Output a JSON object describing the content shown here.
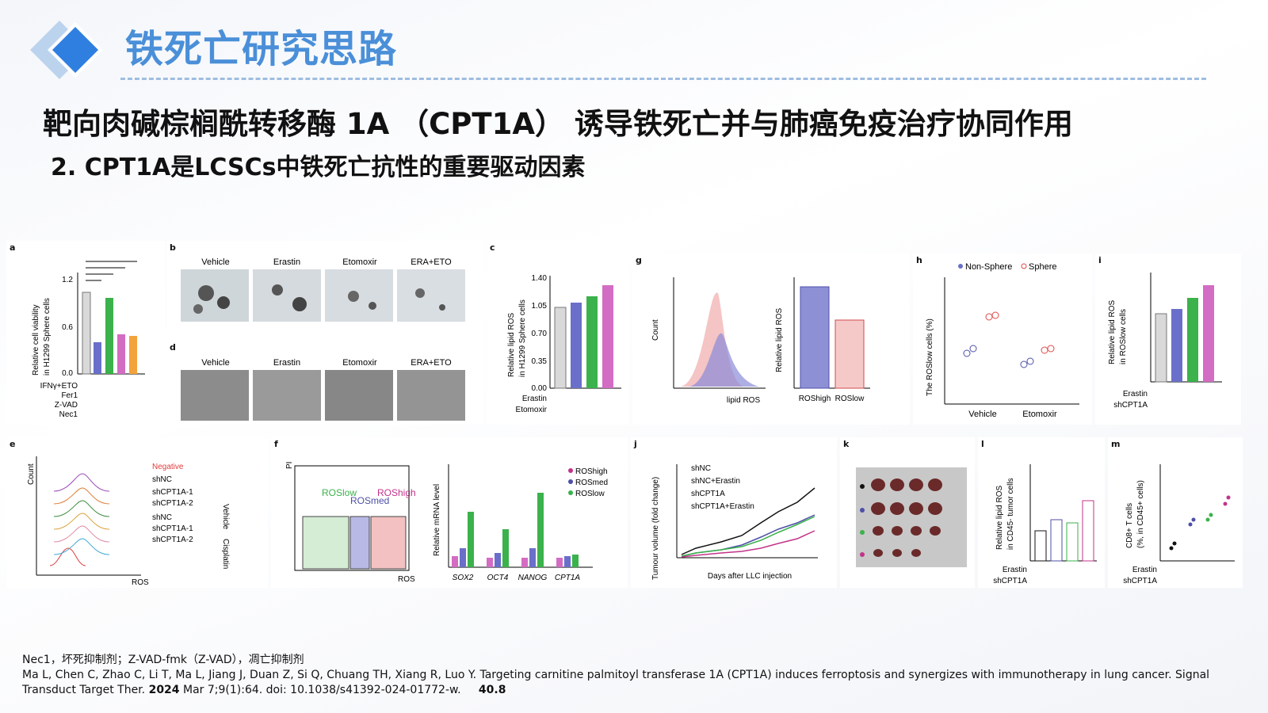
{
  "header": {
    "title": "铁死亡研究思路"
  },
  "headline": "靶向肉碱棕榈酰转移酶 1A （CPT1A） 诱导铁死亡并与肺癌免疫治疗协同作用",
  "subheadline": "2. CPT1A是LCSCs中铁死亡抗性的重要驱动因素",
  "colors": {
    "title_blue": "#4a8fd8",
    "logo_blue": "#2f7fe0",
    "dash": "#9fbde0"
  },
  "figure": {
    "panel_labels": [
      "a",
      "b",
      "c",
      "d",
      "e",
      "f",
      "g",
      "h",
      "i",
      "j",
      "k",
      "l",
      "m"
    ],
    "b_titles": [
      "Vehicle",
      "Erastin",
      "Etomoxir",
      "ERA+ETO"
    ],
    "d_titles": [
      "Vehicle",
      "Erastin",
      "Etomoxir",
      "ERA+ETO"
    ],
    "a": {
      "ylabel": "Relative cell viability\nin H1299 Sphere cells",
      "yticks": [
        "0.0",
        "0.6",
        "1.2"
      ],
      "rows": [
        "IFNγ+ETO",
        "Fer1",
        "Z-VAD",
        "Nec1"
      ]
    },
    "c": {
      "ylabel": "Relative lipid ROS\nin H1299 Sphere cells",
      "yticks": [
        "0.00",
        "0.35",
        "0.70",
        "1.05",
        "1.40"
      ],
      "rows": [
        "Erastin",
        "Etomoxir"
      ]
    },
    "e": {
      "legend": [
        "Negative",
        "shNC",
        "shCPT1A-1",
        "shCPT1A-2",
        "shNC",
        "shCPT1A-1",
        "shCPT1A-2"
      ],
      "group1": "Vehicle",
      "group2": "Cisplatin",
      "xlabel": "ROS",
      "ylabel": "Count"
    },
    "f": {
      "gates": [
        "ROSlow",
        "ROSmed",
        "ROShigh"
      ],
      "xlabel": "ROS",
      "ylabel": "PI",
      "bar_ylabel": "Relative mRNA level",
      "genes": [
        "SOX2",
        "OCT4",
        "NANOG",
        "CPT1A"
      ],
      "legend": [
        "ROShigh",
        "ROSmed",
        "ROSlow"
      ]
    },
    "g": {
      "xlabel": "lipid ROS",
      "ylabel": "Count",
      "bar_ylabel": "Relative lipid ROS",
      "bar_labels": [
        "ROShigh",
        "ROSlow"
      ]
    },
    "h": {
      "legend": [
        "Non-Sphere",
        "Sphere"
      ],
      "ylabel": "The ROSlow cells (%)",
      "xlabels": [
        "Vehicle",
        "Etomoxir"
      ]
    },
    "i": {
      "ylabel": "Relative lipid ROS\nin ROSlow cells",
      "rows": [
        "Erastin",
        "shCPT1A"
      ]
    },
    "j": {
      "legend": [
        "shNC",
        "shNC+Erastin",
        "shCPT1A",
        "shCPT1A+Erastin"
      ],
      "xlabel": "Days after LLC injection",
      "ylabel": "Tumour volume (fold change)"
    },
    "l": {
      "ylabel": "Relative lipid ROS\nin CD45- tumor cells",
      "rows": [
        "Erastin",
        "shCPT1A"
      ]
    },
    "m": {
      "ylabel": "CD8+ T cells\n(%, in CD45+ cells)",
      "rows": [
        "Erastin",
        "shCPT1A"
      ]
    }
  },
  "footnote": "Nec1，坏死抑制剂；Z-VAD-fmk（Z-VAD），凋亡抑制剂",
  "citation": {
    "text_before": "Ma L, Chen C, Zhao C, Li T, Ma L, Jiang J, Duan Z, Si Q, Chuang TH, Xiang R, Luo Y. Targeting carnitine palmitoyl transferase 1A (CPT1A) induces ferroptosis and synergizes with immunotherapy in lung cancer. Signal Transduct Target Ther. ",
    "year": "2024",
    "text_after": " Mar 7;9(1):64. doi: 10.1038/s41392-024-01772-w.",
    "impact_factor": "40.8"
  }
}
